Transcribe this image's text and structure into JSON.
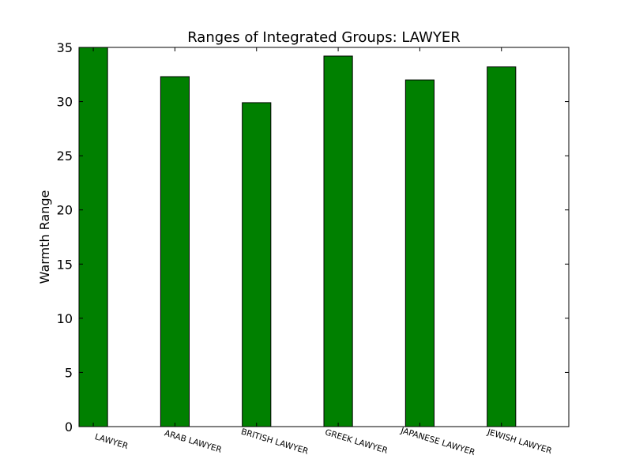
{
  "chart_data": {
    "type": "bar",
    "title": "Ranges of Integrated Groups: LAWYER",
    "xlabel": "",
    "ylabel": "Warmth Range",
    "categories": [
      "LAWYER",
      "ARAB LAWYER",
      "BRITISH LAWYER",
      "GREEK LAWYER",
      "JAPANESE LAWYER",
      "JEWISH LAWYER"
    ],
    "values": [
      35.0,
      32.3,
      29.9,
      34.2,
      32.0,
      33.2
    ],
    "ylim": [
      0,
      35
    ],
    "yticks": [
      "0",
      "5",
      "10",
      "15",
      "20",
      "25",
      "30",
      "35"
    ],
    "bar_color": "#008000",
    "grid": false,
    "legend": "none"
  }
}
